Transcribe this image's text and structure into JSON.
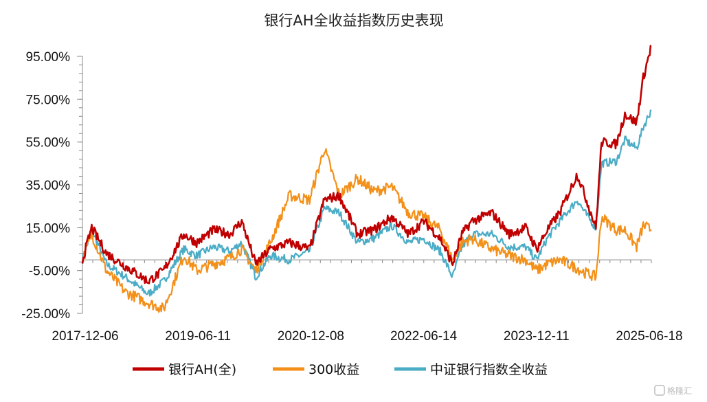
{
  "chart_data": {
    "type": "line",
    "title": "银行AH全收益指数历史表现",
    "ylim": [
      -25,
      95
    ],
    "y_ticks": [
      -25,
      -5,
      15,
      35,
      55,
      75,
      95
    ],
    "y_tick_labels": [
      "-25.00%",
      "-5.00%",
      "15.00%",
      "35.00%",
      "55.00%",
      "75.00%",
      "95.00%"
    ],
    "x_tick_labels": [
      "2017-12-06",
      "2019-06-11",
      "2020-12-08",
      "2022-06-14",
      "2023-12-11",
      "2025-06-18"
    ],
    "x_range": [
      "2017-12-06",
      "2025-06-18"
    ],
    "legend_position": "bottom",
    "series": [
      {
        "name": "银行AH(全)",
        "color": "#C00000",
        "x": [
          "2017-12-06",
          "2018-01-20",
          "2018-04-01",
          "2018-07-01",
          "2018-10-20",
          "2019-01-03",
          "2019-04-10",
          "2019-06-11",
          "2019-09-01",
          "2019-11-20",
          "2020-01-15",
          "2020-03-23",
          "2020-06-01",
          "2020-09-01",
          "2020-12-08",
          "2021-02-18",
          "2021-05-01",
          "2021-07-28",
          "2021-10-15",
          "2022-01-10",
          "2022-04-01",
          "2022-06-14",
          "2022-09-01",
          "2022-10-31",
          "2022-12-15",
          "2023-02-01",
          "2023-05-08",
          "2023-08-01",
          "2023-10-20",
          "2023-12-11",
          "2024-02-01",
          "2024-04-01",
          "2024-06-25",
          "2024-08-01",
          "2024-09-23",
          "2024-10-20",
          "2024-12-31",
          "2025-02-10",
          "2025-04-08",
          "2025-05-10",
          "2025-06-18"
        ],
        "values": [
          0,
          15,
          3,
          -3,
          -10,
          -5,
          12,
          8,
          14,
          12,
          18,
          -2,
          5,
          8,
          5,
          28,
          30,
          12,
          14,
          20,
          12,
          18,
          10,
          -2,
          12,
          18,
          22,
          12,
          15,
          5,
          14,
          22,
          40,
          30,
          15,
          55,
          54,
          68,
          64,
          85,
          100
        ]
      },
      {
        "name": "300收益",
        "color": "#F39019",
        "x": [
          "2017-12-06",
          "2018-01-20",
          "2018-04-01",
          "2018-07-01",
          "2018-10-20",
          "2019-01-03",
          "2019-04-10",
          "2019-06-11",
          "2019-09-01",
          "2019-11-20",
          "2020-01-15",
          "2020-03-23",
          "2020-06-01",
          "2020-09-01",
          "2020-12-08",
          "2021-02-18",
          "2021-05-01",
          "2021-07-28",
          "2021-10-15",
          "2022-01-10",
          "2022-04-01",
          "2022-06-14",
          "2022-09-01",
          "2022-10-31",
          "2022-12-15",
          "2023-02-01",
          "2023-05-08",
          "2023-08-01",
          "2023-10-20",
          "2023-12-11",
          "2024-02-01",
          "2024-04-01",
          "2024-06-25",
          "2024-08-01",
          "2024-09-23",
          "2024-10-20",
          "2024-12-31",
          "2025-02-10",
          "2025-04-08",
          "2025-05-10",
          "2025-06-18"
        ],
        "values": [
          0,
          12,
          -5,
          -15,
          -20,
          -23,
          2,
          -5,
          -2,
          1,
          5,
          -5,
          8,
          30,
          28,
          52,
          30,
          38,
          32,
          34,
          22,
          20,
          14,
          0,
          8,
          10,
          5,
          2,
          0,
          -5,
          -2,
          0,
          -4,
          -6,
          -8,
          20,
          14,
          14,
          6,
          16,
          14
        ]
      },
      {
        "name": "中证银行指数全收益",
        "color": "#4BACC6",
        "x": [
          "2017-12-06",
          "2018-01-20",
          "2018-04-01",
          "2018-07-01",
          "2018-10-20",
          "2019-01-03",
          "2019-04-10",
          "2019-06-11",
          "2019-09-01",
          "2019-11-20",
          "2020-01-15",
          "2020-03-23",
          "2020-06-01",
          "2020-09-01",
          "2020-12-08",
          "2021-02-18",
          "2021-05-01",
          "2021-07-28",
          "2021-10-15",
          "2022-01-10",
          "2022-04-01",
          "2022-06-14",
          "2022-09-01",
          "2022-10-31",
          "2022-12-15",
          "2023-02-01",
          "2023-05-08",
          "2023-08-01",
          "2023-10-20",
          "2023-12-11",
          "2024-02-01",
          "2024-04-01",
          "2024-06-25",
          "2024-08-01",
          "2024-09-23",
          "2024-10-20",
          "2024-12-31",
          "2025-02-10",
          "2025-04-08",
          "2025-05-10",
          "2025-06-18"
        ],
        "values": [
          0,
          14,
          -2,
          -8,
          -16,
          -10,
          5,
          2,
          6,
          4,
          8,
          -8,
          2,
          0,
          4,
          24,
          22,
          8,
          10,
          16,
          8,
          10,
          4,
          -8,
          6,
          12,
          12,
          6,
          6,
          0,
          10,
          18,
          28,
          22,
          15,
          45,
          46,
          56,
          52,
          62,
          70
        ]
      }
    ]
  },
  "watermark": "格隆汇"
}
